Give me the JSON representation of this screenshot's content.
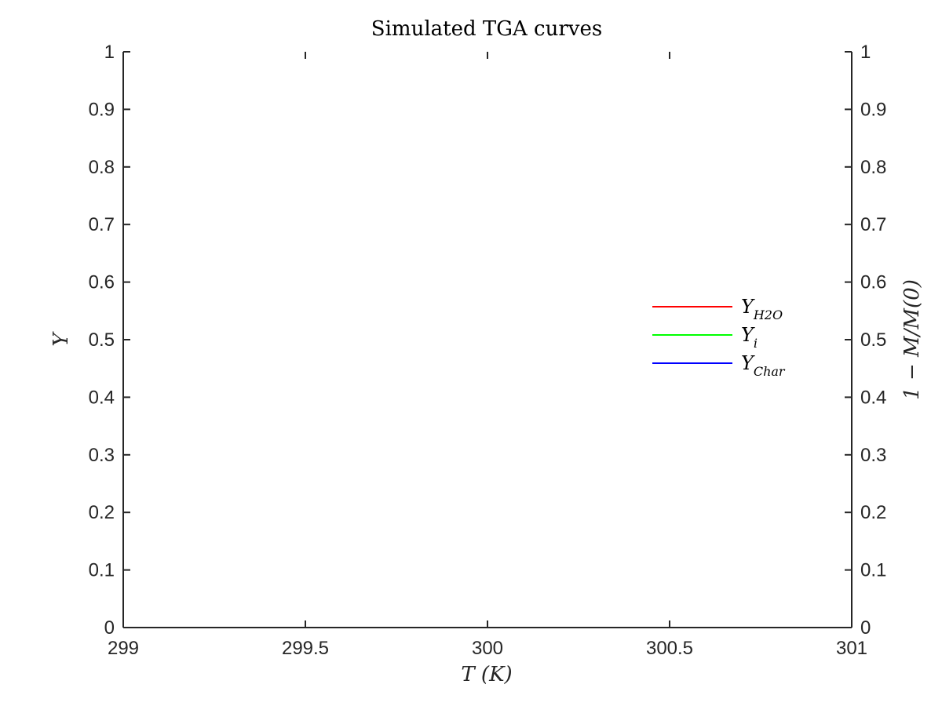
{
  "chart_data": {
    "type": "line",
    "title": "Simulated TGA curves",
    "xlabel": "T (K)",
    "ylabel": "Y",
    "y2label": "1 − M/M(0)",
    "xlim": [
      299,
      301
    ],
    "ylim": [
      0,
      1
    ],
    "y2lim": [
      0,
      1
    ],
    "xticks": [
      "299",
      "299.5",
      "300",
      "300.5",
      "301"
    ],
    "xtick_values": [
      299,
      299.5,
      300,
      300.5,
      301
    ],
    "yticks": [
      "0",
      "0.1",
      "0.2",
      "0.3",
      "0.4",
      "0.5",
      "0.6",
      "0.7",
      "0.8",
      "0.9",
      "1"
    ],
    "ytick_values": [
      0,
      0.1,
      0.2,
      0.3,
      0.4,
      0.5,
      0.6,
      0.7,
      0.8,
      0.9,
      1
    ],
    "grid": false,
    "legend_position": "right",
    "series": [
      {
        "name": "Y",
        "subscript": "H2O",
        "color": "#ff0000",
        "x": [],
        "y": []
      },
      {
        "name": "Y",
        "subscript": "i",
        "color": "#00ff00",
        "x": [],
        "y": []
      },
      {
        "name": "Y",
        "subscript": "Char",
        "color": "#0000ff",
        "x": [],
        "y": []
      }
    ]
  }
}
